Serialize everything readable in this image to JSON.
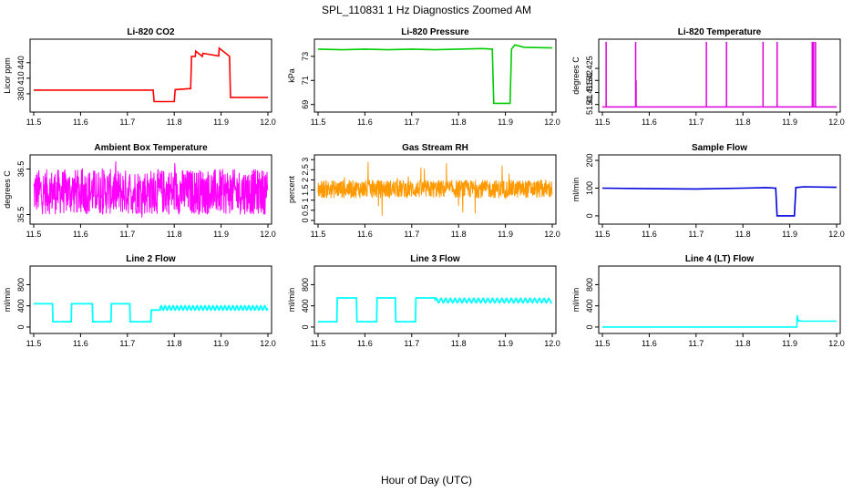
{
  "figure": {
    "title": "SPL_110831 1 Hz Diagnostics Zoomed AM",
    "xlabel": "Hour of Day (UTC)"
  },
  "chart_data": [
    {
      "type": "line",
      "title": "Li-820 CO2",
      "ylabel": "Licor ppm",
      "color": "#ff0000",
      "xlim": [
        11.5,
        12.0
      ],
      "ylim": [
        350,
        480
      ],
      "xticks": [
        11.5,
        11.6,
        11.7,
        11.8,
        11.9,
        12.0
      ],
      "yticks": [
        380,
        410,
        440
      ],
      "x": [
        11.5,
        11.755,
        11.757,
        11.8,
        11.802,
        11.835,
        11.837,
        11.845,
        11.846,
        11.86,
        11.861,
        11.895,
        11.896,
        11.918,
        11.92,
        12.0
      ],
      "y": [
        387,
        387,
        365,
        365,
        388,
        390,
        452,
        452,
        462,
        452,
        458,
        453,
        468,
        452,
        373,
        373
      ]
    },
    {
      "type": "line",
      "title": "Li-820 Pressure",
      "ylabel": "kPa",
      "color": "#00cc00",
      "xlim": [
        11.5,
        12.0
      ],
      "ylim": [
        68.6,
        74.2
      ],
      "xticks": [
        11.5,
        11.6,
        11.7,
        11.8,
        11.9,
        12.0
      ],
      "yticks": [
        69,
        71,
        73
      ],
      "x": [
        11.5,
        11.55,
        11.6,
        11.65,
        11.7,
        11.75,
        11.8,
        11.85,
        11.872,
        11.875,
        11.91,
        11.913,
        11.92,
        11.94,
        12.0
      ],
      "y": [
        73.6,
        73.55,
        73.6,
        73.55,
        73.6,
        73.55,
        73.6,
        73.65,
        73.6,
        69.1,
        69.1,
        73.6,
        73.95,
        73.75,
        73.7
      ]
    },
    {
      "type": "line",
      "title": "Li-820 Temperature",
      "ylabel": "degrees C",
      "color": "#dd00dd",
      "xlim": [
        11.5,
        12.0
      ],
      "ylim": [
        51.408,
        51.436
      ],
      "xticks": [
        11.5,
        11.6,
        11.7,
        11.8,
        11.9,
        12.0
      ],
      "yticks": [
        51.41,
        51.415,
        51.42,
        51.425
      ],
      "baseline": 51.409,
      "spikes": [
        [
          11.508,
          51.436
        ],
        [
          11.571,
          51.436
        ],
        [
          11.572,
          51.42
        ],
        [
          11.722,
          51.436
        ],
        [
          11.765,
          51.436
        ],
        [
          11.843,
          51.436
        ],
        [
          11.873,
          51.436
        ],
        [
          11.948,
          51.436
        ],
        [
          11.951,
          51.436
        ],
        [
          11.955,
          51.436
        ]
      ]
    },
    {
      "type": "line",
      "title": "Ambient Box Temperature",
      "ylabel": "degrees C",
      "color": "#ff00ff",
      "xlim": [
        11.5,
        12.0
      ],
      "ylim": [
        35.35,
        36.75
      ],
      "xticks": [
        11.5,
        11.6,
        11.7,
        11.8,
        11.9,
        12.0
      ],
      "yticks": [
        35.5,
        36.5
      ],
      "noise": {
        "low": 35.5,
        "high": 36.5,
        "min": 35.42,
        "max": 36.72
      }
    },
    {
      "type": "line",
      "title": "Gas Stream RH",
      "ylabel": "percent",
      "color": "#ff9900",
      "xlim": [
        11.5,
        12.0
      ],
      "ylim": [
        -0.05,
        3.1
      ],
      "xticks": [
        11.5,
        11.6,
        11.7,
        11.8,
        11.9,
        12.0
      ],
      "yticks": [
        0.0,
        0.5,
        1.0,
        1.5,
        2.0,
        2.5,
        3.0
      ],
      "noise": {
        "low": 1.1,
        "high": 2.0,
        "min": 0.05,
        "max": 2.95
      }
    },
    {
      "type": "line",
      "title": "Sample Flow",
      "ylabel": "ml/min",
      "color": "#0000dd",
      "xlim": [
        11.5,
        12.0
      ],
      "ylim": [
        -20,
        210
      ],
      "xticks": [
        11.5,
        11.6,
        11.7,
        11.8,
        11.9,
        12.0
      ],
      "yticks": [
        0,
        100,
        200
      ],
      "x": [
        11.5,
        11.6,
        11.7,
        11.8,
        11.85,
        11.87,
        11.873,
        11.91,
        11.913,
        11.93,
        12.0
      ],
      "y": [
        100,
        98,
        97,
        100,
        102,
        100,
        0,
        0,
        102,
        105,
        103
      ]
    },
    {
      "type": "line",
      "title": "Line 2 Flow",
      "ylabel": "ml/min",
      "color": "#00ffff",
      "xlim": [
        11.5,
        12.0
      ],
      "ylim": [
        -70,
        1100
      ],
      "xticks": [
        11.5,
        11.6,
        11.7,
        11.8,
        11.9,
        12.0
      ],
      "yticks": [
        0,
        400,
        800
      ],
      "x": [
        11.5,
        11.54,
        11.541,
        11.58,
        11.581,
        11.625,
        11.626,
        11.665,
        11.666,
        11.705,
        11.706,
        11.75,
        11.751,
        11.77
      ],
      "y": [
        440,
        440,
        100,
        100,
        440,
        440,
        100,
        100,
        440,
        440,
        100,
        100,
        320,
        320
      ],
      "oscillation": {
        "start": 11.77,
        "end": 12.0,
        "mean": 360,
        "amplitude": 40,
        "period": 0.0085
      }
    },
    {
      "type": "line",
      "title": "Line 3 Flow",
      "ylabel": "ml/min",
      "color": "#00ffff",
      "xlim": [
        11.5,
        12.0
      ],
      "ylim": [
        -70,
        1100
      ],
      "xticks": [
        11.5,
        11.6,
        11.7,
        11.8,
        11.9,
        12.0
      ],
      "yticks": [
        0,
        400,
        800
      ],
      "x": [
        11.5,
        11.54,
        11.541,
        11.582,
        11.583,
        11.625,
        11.626,
        11.665,
        11.666,
        11.708,
        11.709,
        11.75
      ],
      "y": [
        100,
        100,
        550,
        550,
        100,
        100,
        550,
        550,
        100,
        100,
        550,
        550
      ],
      "oscillation": {
        "start": 11.75,
        "end": 12.0,
        "mean": 500,
        "amplitude": 40,
        "period": 0.01
      }
    },
    {
      "type": "line",
      "title": "Line 4 (LT) Flow",
      "ylabel": "ml/min",
      "color": "#00ffff",
      "xlim": [
        11.5,
        12.0
      ],
      "ylim": [
        -70,
        1100
      ],
      "xticks": [
        11.5,
        11.6,
        11.7,
        11.8,
        11.9,
        12.0
      ],
      "yticks": [
        0,
        400,
        800
      ],
      "x": [
        11.5,
        11.915,
        11.916,
        11.918,
        11.919,
        11.925,
        12.0
      ],
      "y": [
        0,
        0,
        220,
        100,
        130,
        110,
        110
      ]
    }
  ]
}
